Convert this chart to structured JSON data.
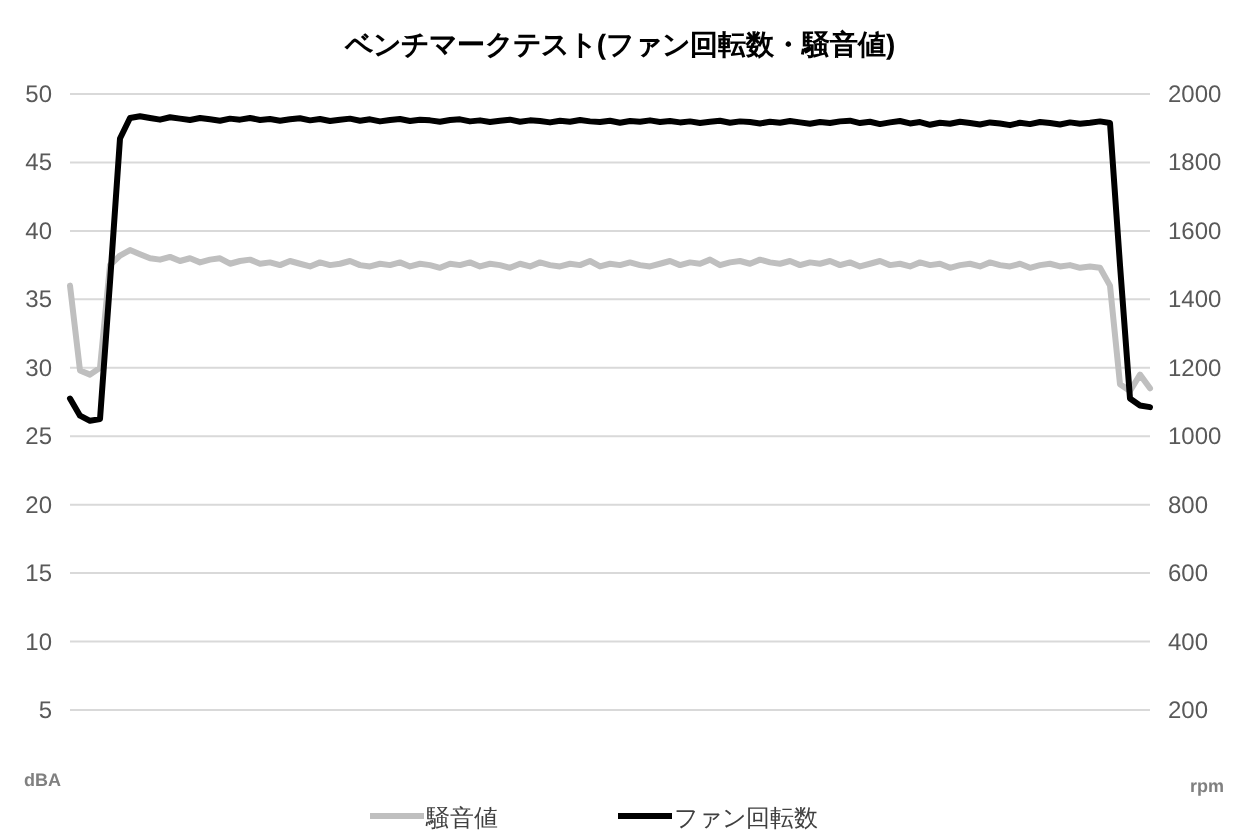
{
  "chart_data": {
    "type": "line",
    "title": "ベンチマークテスト(ファン回転数・騒音値)",
    "ylabel": "dBA",
    "y2label": "rpm",
    "categories": [
      null,
      null,
      null,
      null,
      null,
      null,
      null,
      null,
      null,
      null,
      null,
      null,
      null,
      null,
      null,
      null,
      null,
      null,
      null,
      null,
      null,
      null,
      null,
      null,
      null,
      null,
      null,
      null,
      null,
      null,
      null,
      null,
      null,
      null,
      null,
      null,
      null,
      null,
      null,
      null,
      null,
      null,
      null,
      null,
      null,
      null,
      null,
      null,
      null,
      null,
      null,
      null,
      null,
      null,
      null,
      null,
      null,
      null,
      null,
      null,
      null,
      null,
      null,
      null,
      null,
      null,
      null,
      null,
      null,
      null,
      null,
      null,
      null,
      null,
      null,
      null,
      null,
      null,
      null,
      null,
      null,
      null,
      null,
      null,
      null,
      null,
      null,
      null,
      null,
      null,
      null,
      null,
      null,
      null,
      null,
      null,
      null,
      null,
      null,
      null,
      null,
      null,
      null,
      null,
      null,
      null,
      null,
      null,
      null
    ],
    "series": [
      {
        "name": "騒音値",
        "color": "#bfbfbf",
        "values": [
          36.0,
          29.8,
          29.5,
          30.0,
          37.5,
          38.2,
          38.6,
          38.3,
          38.0,
          37.9,
          38.1,
          37.8,
          38.0,
          37.7,
          37.9,
          38.0,
          37.6,
          37.8,
          37.9,
          37.6,
          37.7,
          37.5,
          37.8,
          37.6,
          37.4,
          37.7,
          37.5,
          37.6,
          37.8,
          37.5,
          37.4,
          37.6,
          37.5,
          37.7,
          37.4,
          37.6,
          37.5,
          37.3,
          37.6,
          37.5,
          37.7,
          37.4,
          37.6,
          37.5,
          37.3,
          37.6,
          37.4,
          37.7,
          37.5,
          37.4,
          37.6,
          37.5,
          37.8,
          37.4,
          37.6,
          37.5,
          37.7,
          37.5,
          37.4,
          37.6,
          37.8,
          37.5,
          37.7,
          37.6,
          37.9,
          37.5,
          37.7,
          37.8,
          37.6,
          37.9,
          37.7,
          37.6,
          37.8,
          37.5,
          37.7,
          37.6,
          37.8,
          37.5,
          37.7,
          37.4,
          37.6,
          37.8,
          37.5,
          37.6,
          37.4,
          37.7,
          37.5,
          37.6,
          37.3,
          37.5,
          37.6,
          37.4,
          37.7,
          37.5,
          37.4,
          37.6,
          37.3,
          37.5,
          37.6,
          37.4,
          37.5,
          37.3,
          37.4,
          37.3,
          36.0,
          28.8,
          28.3,
          29.5,
          28.5
        ]
      },
      {
        "name": "ファン回転数",
        "color": "#000000",
        "axis": "y2",
        "values": [
          1110,
          1060,
          1045,
          1050,
          1450,
          1870,
          1930,
          1935,
          1930,
          1925,
          1932,
          1928,
          1924,
          1930,
          1926,
          1922,
          1928,
          1925,
          1930,
          1924,
          1927,
          1922,
          1926,
          1929,
          1923,
          1927,
          1921,
          1925,
          1928,
          1922,
          1926,
          1920,
          1924,
          1927,
          1921,
          1925,
          1923,
          1919,
          1924,
          1926,
          1920,
          1923,
          1918,
          1922,
          1925,
          1919,
          1923,
          1921,
          1917,
          1922,
          1919,
          1924,
          1920,
          1918,
          1922,
          1916,
          1921,
          1919,
          1923,
          1918,
          1921,
          1917,
          1920,
          1915,
          1919,
          1922,
          1916,
          1920,
          1918,
          1914,
          1919,
          1916,
          1921,
          1917,
          1913,
          1918,
          1915,
          1920,
          1922,
          1915,
          1919,
          1912,
          1917,
          1921,
          1914,
          1918,
          1910,
          1916,
          1913,
          1919,
          1915,
          1911,
          1917,
          1914,
          1909,
          1916,
          1912,
          1918,
          1915,
          1911,
          1917,
          1913,
          1916,
          1920,
          1915,
          1500,
          1110,
          1090,
          1085
        ]
      }
    ],
    "ylim": [
      5,
      50
    ],
    "yticks": [
      5,
      10,
      15,
      20,
      25,
      30,
      35,
      40,
      45,
      50
    ],
    "y2lim": [
      200,
      2000
    ],
    "y2ticks": [
      200,
      400,
      600,
      800,
      1000,
      1200,
      1400,
      1600,
      1800,
      2000
    ],
    "grid": "y",
    "legend": "bottom"
  }
}
